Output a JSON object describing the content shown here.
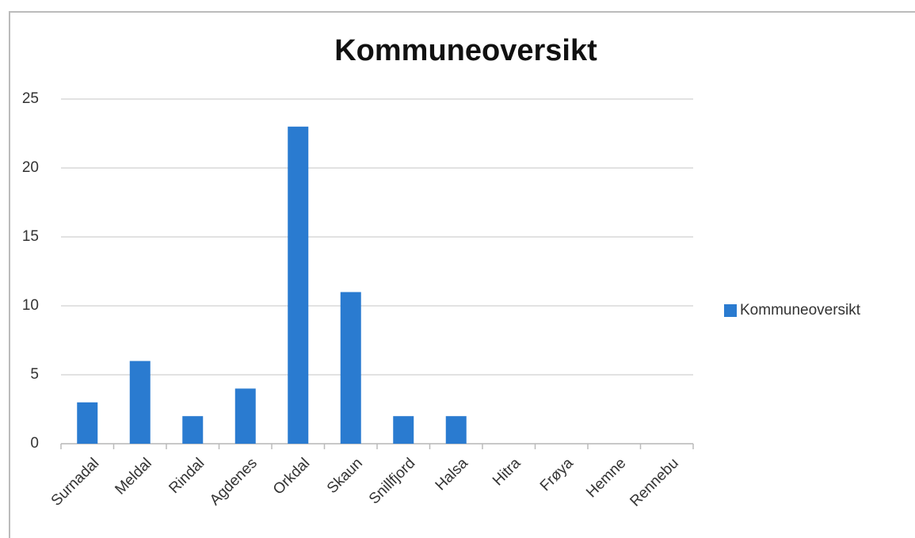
{
  "chart_data": {
    "type": "bar",
    "title": "Kommuneoversikt",
    "categories": [
      "Surnadal",
      "Meldal",
      "Rindal",
      "Agdenes",
      "Orkdal",
      "Skaun",
      "Snillfjord",
      "Halsa",
      "Hitra",
      "Frøya",
      "Hemne",
      "Rennebu"
    ],
    "series": [
      {
        "name": "Kommuneoversikt",
        "color": "#2a7bd0",
        "values": [
          3,
          6,
          2,
          4,
          23,
          11,
          2,
          2,
          0,
          0,
          0,
          0
        ]
      }
    ],
    "ylim": [
      0,
      25
    ],
    "yticks": [
      0,
      5,
      10,
      15,
      20,
      25
    ],
    "grid": true,
    "legend": "right"
  }
}
